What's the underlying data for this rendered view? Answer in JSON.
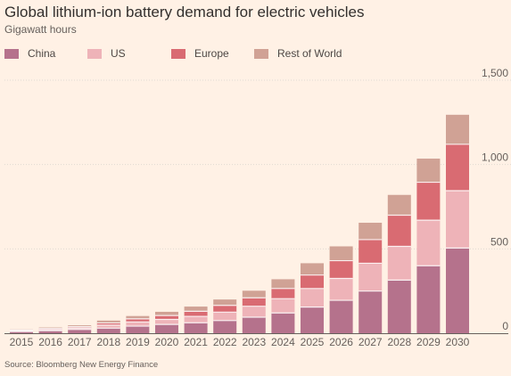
{
  "title": "Global lithium-ion battery demand for electric vehicles",
  "subtitle": "Gigawatt hours",
  "source": "Source: Bloomberg New Energy Finance",
  "colors": {
    "background": "#fff1e5",
    "gridline": "#e1d9d2",
    "baseline": "#66605c",
    "tick_text": "#66605c"
  },
  "chart_data": {
    "type": "bar",
    "stacked": true,
    "title": "Global lithium-ion battery demand for electric vehicles",
    "subtitle": "Gigawatt hours",
    "ylim": [
      0,
      1500
    ],
    "y_ticks": [
      0,
      500,
      1000,
      1500
    ],
    "y_tick_labels": [
      "0",
      "500",
      "1,000",
      "1,500"
    ],
    "grid": true,
    "legend_position": "top",
    "categories": [
      "2015",
      "2016",
      "2017",
      "2018",
      "2019",
      "2020",
      "2021",
      "2022",
      "2023",
      "2024",
      "2025",
      "2026",
      "2027",
      "2028",
      "2029",
      "2030"
    ],
    "series": [
      {
        "name": "China",
        "color": "#b5728c",
        "values": [
          10,
          15,
          22,
          30,
          42,
          52,
          62,
          75,
          95,
          120,
          155,
          195,
          250,
          315,
          400,
          505
        ]
      },
      {
        "name": "US",
        "color": "#eeb3b8",
        "values": [
          5,
          7,
          9,
          18,
          25,
          30,
          38,
          50,
          65,
          85,
          110,
          130,
          165,
          200,
          270,
          340
        ]
      },
      {
        "name": "Europe",
        "color": "#d96b72",
        "values": [
          4,
          6,
          8,
          13,
          18,
          23,
          30,
          40,
          50,
          60,
          80,
          105,
          140,
          185,
          225,
          275
        ]
      },
      {
        "name": "Rest of World",
        "color": "#d0a295",
        "values": [
          4,
          6,
          8,
          14,
          17,
          22,
          28,
          35,
          42,
          55,
          70,
          85,
          100,
          120,
          140,
          175
        ]
      }
    ]
  }
}
